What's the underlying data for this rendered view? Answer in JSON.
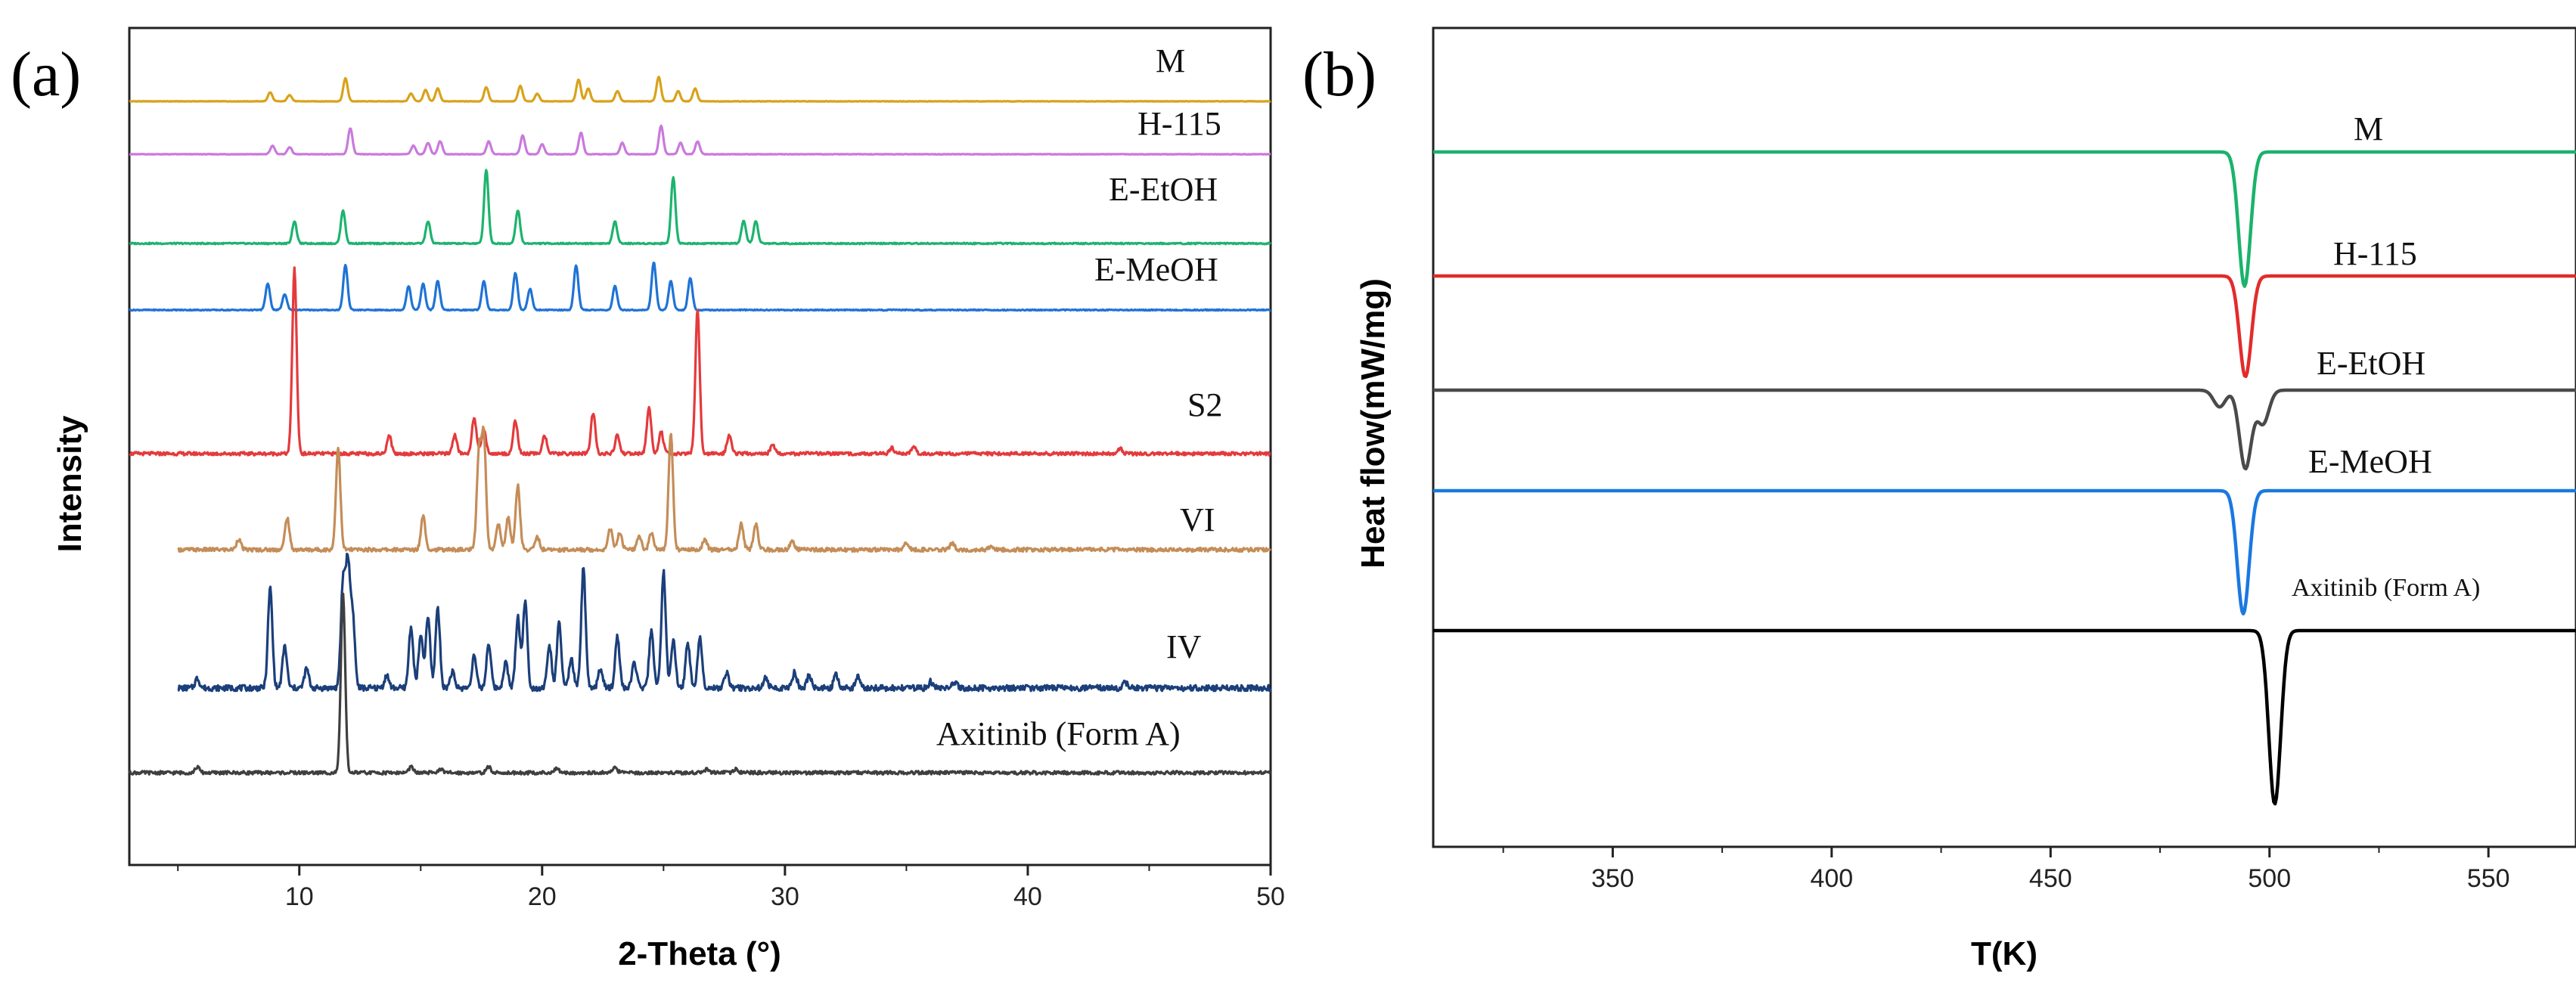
{
  "figure": {
    "panel_a_label": "(a)",
    "panel_b_label": "(b)"
  },
  "chart_data": [
    {
      "id": "xrd",
      "type": "line",
      "xlabel": "2-Theta (°)",
      "ylabel": "Intensity",
      "xlim": [
        3,
        50
      ],
      "xticks": [
        10,
        20,
        30,
        40,
        50
      ],
      "yticks_shown": false,
      "series": [
        {
          "name": "M",
          "color": "#d9a21b",
          "x_start": 3,
          "peaks": [
            [
              8.8,
              0.35
            ],
            [
              9.6,
              0.25
            ],
            [
              11.9,
              0.9
            ],
            [
              14.6,
              0.3
            ],
            [
              15.2,
              0.45
            ],
            [
              15.7,
              0.5
            ],
            [
              17.7,
              0.55
            ],
            [
              19.1,
              0.6
            ],
            [
              19.8,
              0.3
            ],
            [
              21.5,
              0.85
            ],
            [
              21.9,
              0.5
            ],
            [
              23.1,
              0.4
            ],
            [
              24.8,
              0.95
            ],
            [
              25.6,
              0.4
            ],
            [
              26.3,
              0.5
            ]
          ]
        },
        {
          "name": "H-115",
          "color": "#c979dc",
          "x_start": 3,
          "peaks": [
            [
              8.9,
              0.3
            ],
            [
              9.6,
              0.25
            ],
            [
              12.1,
              0.9
            ],
            [
              14.7,
              0.3
            ],
            [
              15.3,
              0.4
            ],
            [
              15.8,
              0.45
            ],
            [
              17.8,
              0.45
            ],
            [
              19.2,
              0.65
            ],
            [
              20.0,
              0.35
            ],
            [
              21.6,
              0.75
            ],
            [
              23.3,
              0.4
            ],
            [
              24.9,
              1.0
            ],
            [
              25.7,
              0.4
            ],
            [
              26.4,
              0.45
            ]
          ]
        },
        {
          "name": "E-EtOH",
          "color": "#1db36e",
          "x_start": 3,
          "peaks": [
            [
              9.8,
              0.3
            ],
            [
              11.8,
              0.45
            ],
            [
              15.3,
              0.3
            ],
            [
              17.7,
              1.0
            ],
            [
              19.0,
              0.45
            ],
            [
              23.0,
              0.3
            ],
            [
              25.4,
              0.9
            ],
            [
              28.3,
              0.3
            ],
            [
              28.8,
              0.3
            ]
          ]
        },
        {
          "name": "E-MeOH",
          "color": "#1f73d6",
          "x_start": 3,
          "peaks": [
            [
              8.7,
              0.5
            ],
            [
              9.4,
              0.3
            ],
            [
              11.9,
              0.85
            ],
            [
              14.5,
              0.45
            ],
            [
              15.1,
              0.5
            ],
            [
              15.7,
              0.55
            ],
            [
              17.6,
              0.55
            ],
            [
              18.9,
              0.7
            ],
            [
              19.5,
              0.4
            ],
            [
              21.4,
              0.85
            ],
            [
              23.0,
              0.45
            ],
            [
              24.6,
              0.9
            ],
            [
              25.3,
              0.55
            ],
            [
              26.1,
              0.6
            ]
          ]
        },
        {
          "name": "S2",
          "color": "#e43a3c",
          "x_start": 3,
          "peaks": [
            [
              9.8,
              1.0
            ],
            [
              13.7,
              0.1
            ],
            [
              16.4,
              0.1
            ],
            [
              17.2,
              0.2
            ],
            [
              17.6,
              0.13
            ],
            [
              18.9,
              0.18
            ],
            [
              20.1,
              0.1
            ],
            [
              22.1,
              0.22
            ],
            [
              23.1,
              0.1
            ],
            [
              24.4,
              0.25
            ],
            [
              24.9,
              0.12
            ],
            [
              26.4,
              0.78
            ],
            [
              27.7,
              0.1
            ],
            [
              29.5,
              0.05
            ],
            [
              34.4,
              0.03
            ],
            [
              35.3,
              0.04
            ],
            [
              43.8,
              0.03
            ]
          ]
        },
        {
          "name": "VI",
          "color": "#c48d58",
          "x_start": 5,
          "peaks": [
            [
              7.5,
              0.05
            ],
            [
              9.5,
              0.15
            ],
            [
              11.6,
              0.48
            ],
            [
              15.1,
              0.16
            ],
            [
              17.4,
              0.45
            ],
            [
              17.6,
              0.52
            ],
            [
              18.2,
              0.12
            ],
            [
              18.6,
              0.15
            ],
            [
              19.0,
              0.3
            ],
            [
              19.8,
              0.06
            ],
            [
              22.8,
              0.1
            ],
            [
              23.2,
              0.08
            ],
            [
              24.0,
              0.06
            ],
            [
              24.5,
              0.08
            ],
            [
              25.3,
              0.55
            ],
            [
              26.7,
              0.05
            ],
            [
              28.2,
              0.12
            ],
            [
              28.8,
              0.12
            ],
            [
              30.3,
              0.04
            ],
            [
              35.0,
              0.03
            ],
            [
              36.9,
              0.03
            ],
            [
              38.5,
              0.02
            ]
          ]
        },
        {
          "name": "IV",
          "color": "#1b3f7a",
          "x_start": 5,
          "peaks": [
            [
              5.8,
              0.03
            ],
            [
              8.8,
              0.31
            ],
            [
              9.4,
              0.13
            ],
            [
              10.3,
              0.06
            ],
            [
              11.8,
              0.32
            ],
            [
              12.0,
              0.37
            ],
            [
              12.2,
              0.22
            ],
            [
              13.6,
              0.04
            ],
            [
              14.6,
              0.19
            ],
            [
              15.0,
              0.16
            ],
            [
              15.3,
              0.22
            ],
            [
              15.7,
              0.25
            ],
            [
              16.3,
              0.05
            ],
            [
              17.2,
              0.1
            ],
            [
              17.8,
              0.14
            ],
            [
              18.5,
              0.08
            ],
            [
              19.0,
              0.22
            ],
            [
              19.3,
              0.27
            ],
            [
              20.3,
              0.13
            ],
            [
              20.7,
              0.2
            ],
            [
              21.2,
              0.09
            ],
            [
              21.7,
              0.37
            ],
            [
              22.4,
              0.06
            ],
            [
              23.1,
              0.16
            ],
            [
              23.8,
              0.08
            ],
            [
              24.5,
              0.18
            ],
            [
              25.0,
              0.36
            ],
            [
              25.4,
              0.15
            ],
            [
              26.0,
              0.14
            ],
            [
              26.5,
              0.16
            ],
            [
              27.6,
              0.05
            ],
            [
              29.2,
              0.03
            ],
            [
              30.4,
              0.05
            ],
            [
              31.0,
              0.04
            ],
            [
              32.1,
              0.04
            ],
            [
              33.0,
              0.04
            ],
            [
              36.0,
              0.02
            ],
            [
              37.0,
              0.02
            ],
            [
              44.0,
              0.02
            ]
          ]
        },
        {
          "name": "Axitinib (Form A)",
          "color": "#3f3f3f",
          "x_start": 3,
          "peaks": [
            [
              5.8,
              0.03
            ],
            [
              11.8,
              0.95
            ],
            [
              14.6,
              0.03
            ],
            [
              15.8,
              0.02
            ],
            [
              17.8,
              0.03
            ],
            [
              20.6,
              0.02
            ],
            [
              23.0,
              0.03
            ],
            [
              26.8,
              0.02
            ],
            [
              28.0,
              0.02
            ]
          ]
        }
      ]
    },
    {
      "id": "dsc",
      "type": "line",
      "xlabel": "T(K)",
      "ylabel": "Heat flow(mW/mg)",
      "xlim": [
        309,
        570
      ],
      "xticks": [
        350,
        400,
        450,
        500,
        550
      ],
      "yticks_shown": false,
      "series": [
        {
          "name": "M",
          "color": "#1ab36b",
          "onset": 492,
          "troughs": [
            [
              494.3,
              0.48
            ]
          ]
        },
        {
          "name": "H-115",
          "color": "#e32b2b",
          "onset": 492,
          "troughs": [
            [
              494.5,
              0.36
            ]
          ]
        },
        {
          "name": "E-EtOH",
          "color": "#4a4a4a",
          "onset": 486,
          "troughs": [
            [
              488.6,
              0.06
            ],
            [
              494.5,
              0.28
            ],
            [
              498.5,
              0.12
            ]
          ]
        },
        {
          "name": "E-MeOH",
          "color": "#1a78e0",
          "onset": 492,
          "troughs": [
            [
              494.0,
              0.44
            ]
          ]
        },
        {
          "name": "Axitinib (Form A)",
          "color": "#000000",
          "onset": 499,
          "troughs": [
            [
              501.2,
              0.62
            ]
          ]
        }
      ]
    }
  ]
}
